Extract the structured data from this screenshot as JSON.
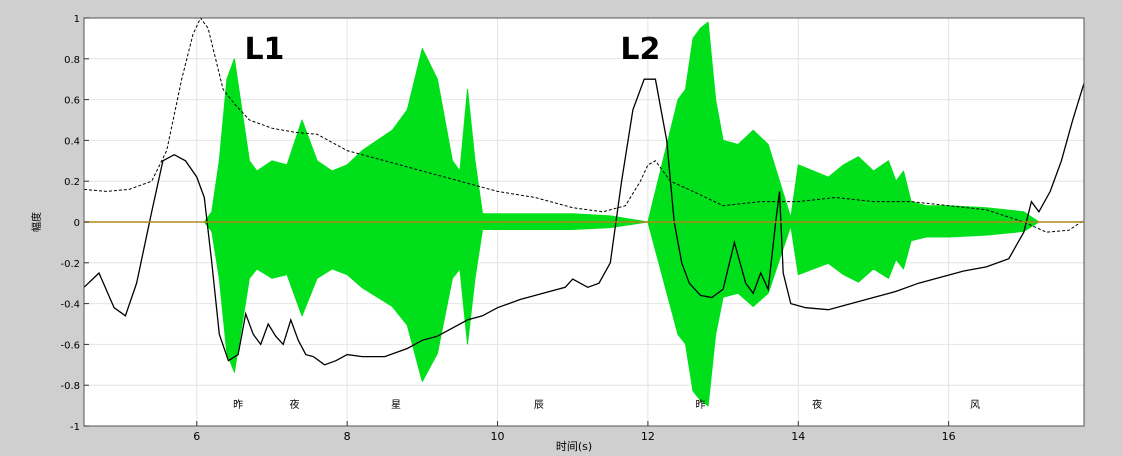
{
  "chart_data": {
    "type": "line",
    "title": "",
    "xlabel": "时间(s)",
    "ylabel": "幅度",
    "xlim": [
      4.5,
      17.8
    ],
    "ylim": [
      -1,
      1
    ],
    "grid": true,
    "x_ticks": [
      6,
      8,
      10,
      12,
      14,
      16
    ],
    "y_ticks": [
      -1,
      -0.8,
      -0.6,
      -0.4,
      -0.2,
      0,
      0.2,
      0.4,
      0.6,
      0.8,
      1
    ],
    "colors": {
      "waveform": "#00e01a",
      "solid": "#000000",
      "dashed": "#000000",
      "axis_line": "#b08a1a",
      "plot_bg": "#ffffff",
      "frame_bg": "#cfcfcf"
    },
    "annotations": [
      {
        "text": "L1",
        "x": 6.9,
        "y": 0.8
      },
      {
        "text": "L2",
        "x": 11.9,
        "y": 0.8
      }
    ],
    "syllables": [
      {
        "text": "昨",
        "x": 6.55
      },
      {
        "text": "夜",
        "x": 7.3
      },
      {
        "text": "星",
        "x": 8.65
      },
      {
        "text": "辰",
        "x": 10.55
      },
      {
        "text": "昨",
        "x": 12.7
      },
      {
        "text": "夜",
        "x": 14.25
      },
      {
        "text": "风",
        "x": 16.35
      }
    ],
    "series": [
      {
        "style": "solid",
        "x": [
          4.5,
          4.7,
          4.9,
          5.05,
          5.2,
          5.4,
          5.55,
          5.7,
          5.85,
          6.0,
          6.1,
          6.2,
          6.3,
          6.42,
          6.55,
          6.65,
          6.75,
          6.85,
          6.95,
          7.05,
          7.15,
          7.25,
          7.35,
          7.45,
          7.55,
          7.7,
          7.85,
          8.0,
          8.2,
          8.5,
          8.8,
          9.0,
          9.2,
          9.4,
          9.6,
          9.8,
          10.0,
          10.3,
          10.6,
          10.9,
          11.0,
          11.2,
          11.35,
          11.5,
          11.65,
          11.8,
          11.95,
          12.1,
          12.25,
          12.35,
          12.45,
          12.55,
          12.7,
          12.85,
          13.0,
          13.15,
          13.3,
          13.4,
          13.5,
          13.6,
          13.7,
          13.75,
          13.8,
          13.9,
          14.1,
          14.4,
          14.7,
          15.0,
          15.3,
          15.6,
          15.9,
          16.2,
          16.5,
          16.8,
          17.0,
          17.1,
          17.2,
          17.35,
          17.5,
          17.65,
          17.8
        ],
        "y": [
          -0.32,
          -0.25,
          -0.42,
          -0.46,
          -0.3,
          0.05,
          0.3,
          0.33,
          0.3,
          0.22,
          0.12,
          -0.2,
          -0.55,
          -0.68,
          -0.65,
          -0.45,
          -0.55,
          -0.6,
          -0.5,
          -0.56,
          -0.6,
          -0.48,
          -0.58,
          -0.65,
          -0.66,
          -0.7,
          -0.68,
          -0.65,
          -0.66,
          -0.66,
          -0.62,
          -0.58,
          -0.56,
          -0.52,
          -0.48,
          -0.46,
          -0.42,
          -0.38,
          -0.35,
          -0.32,
          -0.28,
          -0.32,
          -0.3,
          -0.2,
          0.2,
          0.55,
          0.7,
          0.7,
          0.4,
          0.0,
          -0.2,
          -0.3,
          -0.36,
          -0.37,
          -0.33,
          -0.1,
          -0.3,
          -0.35,
          -0.25,
          -0.33,
          0.0,
          0.15,
          -0.25,
          -0.4,
          -0.42,
          -0.43,
          -0.4,
          -0.37,
          -0.34,
          -0.3,
          -0.27,
          -0.24,
          -0.22,
          -0.18,
          -0.05,
          0.1,
          0.05,
          0.15,
          0.3,
          0.5,
          0.68
        ]
      },
      {
        "style": "dashed",
        "x": [
          4.5,
          4.8,
          5.1,
          5.4,
          5.6,
          5.8,
          5.95,
          6.05,
          6.15,
          6.25,
          6.35,
          6.5,
          6.7,
          7.0,
          7.3,
          7.6,
          8.0,
          8.5,
          9.0,
          9.5,
          10.0,
          10.5,
          11.0,
          11.4,
          11.7,
          11.9,
          12.0,
          12.1,
          12.3,
          12.6,
          13.0,
          13.5,
          14.0,
          14.5,
          15.0,
          15.5,
          16.0,
          16.5,
          17.0,
          17.3,
          17.6,
          17.8
        ],
        "y": [
          0.16,
          0.15,
          0.16,
          0.2,
          0.35,
          0.7,
          0.92,
          1.0,
          0.95,
          0.8,
          0.65,
          0.58,
          0.5,
          0.46,
          0.44,
          0.43,
          0.35,
          0.3,
          0.25,
          0.2,
          0.15,
          0.12,
          0.07,
          0.05,
          0.08,
          0.2,
          0.28,
          0.3,
          0.2,
          0.15,
          0.08,
          0.1,
          0.1,
          0.12,
          0.1,
          0.1,
          0.08,
          0.06,
          0.0,
          -0.05,
          -0.04,
          0.01
        ]
      },
      {
        "style": "waveform",
        "x": [
          4.5,
          5.0,
          6.1,
          6.2,
          6.3,
          6.4,
          6.5,
          6.6,
          6.7,
          6.8,
          7.0,
          7.2,
          7.4,
          7.6,
          7.8,
          8.0,
          8.2,
          8.4,
          8.6,
          8.8,
          9.0,
          9.2,
          9.4,
          9.5,
          9.6,
          9.7,
          9.8,
          10.0,
          10.5,
          11.0,
          11.5,
          12.0,
          12.4,
          12.5,
          12.6,
          12.7,
          12.8,
          12.9,
          13.0,
          13.2,
          13.4,
          13.6,
          13.75,
          13.9,
          14.0,
          14.2,
          14.4,
          14.6,
          14.8,
          15.0,
          15.2,
          15.3,
          15.4,
          15.5,
          15.7,
          16.0,
          16.5,
          17.0,
          17.2,
          17.8
        ],
        "y": [
          0.0,
          0.0,
          0.0,
          0.05,
          0.3,
          0.7,
          0.8,
          0.55,
          0.3,
          0.25,
          0.3,
          0.28,
          0.5,
          0.3,
          0.25,
          0.28,
          0.35,
          0.4,
          0.45,
          0.55,
          0.85,
          0.7,
          0.3,
          0.25,
          0.65,
          0.3,
          0.04,
          0.04,
          0.04,
          0.04,
          0.03,
          0.0,
          0.6,
          0.65,
          0.9,
          0.95,
          0.98,
          0.6,
          0.4,
          0.38,
          0.45,
          0.38,
          0.2,
          0.02,
          0.28,
          0.25,
          0.22,
          0.28,
          0.32,
          0.25,
          0.3,
          0.2,
          0.25,
          0.1,
          0.08,
          0.08,
          0.07,
          0.05,
          0.0,
          0.0
        ]
      }
    ]
  }
}
